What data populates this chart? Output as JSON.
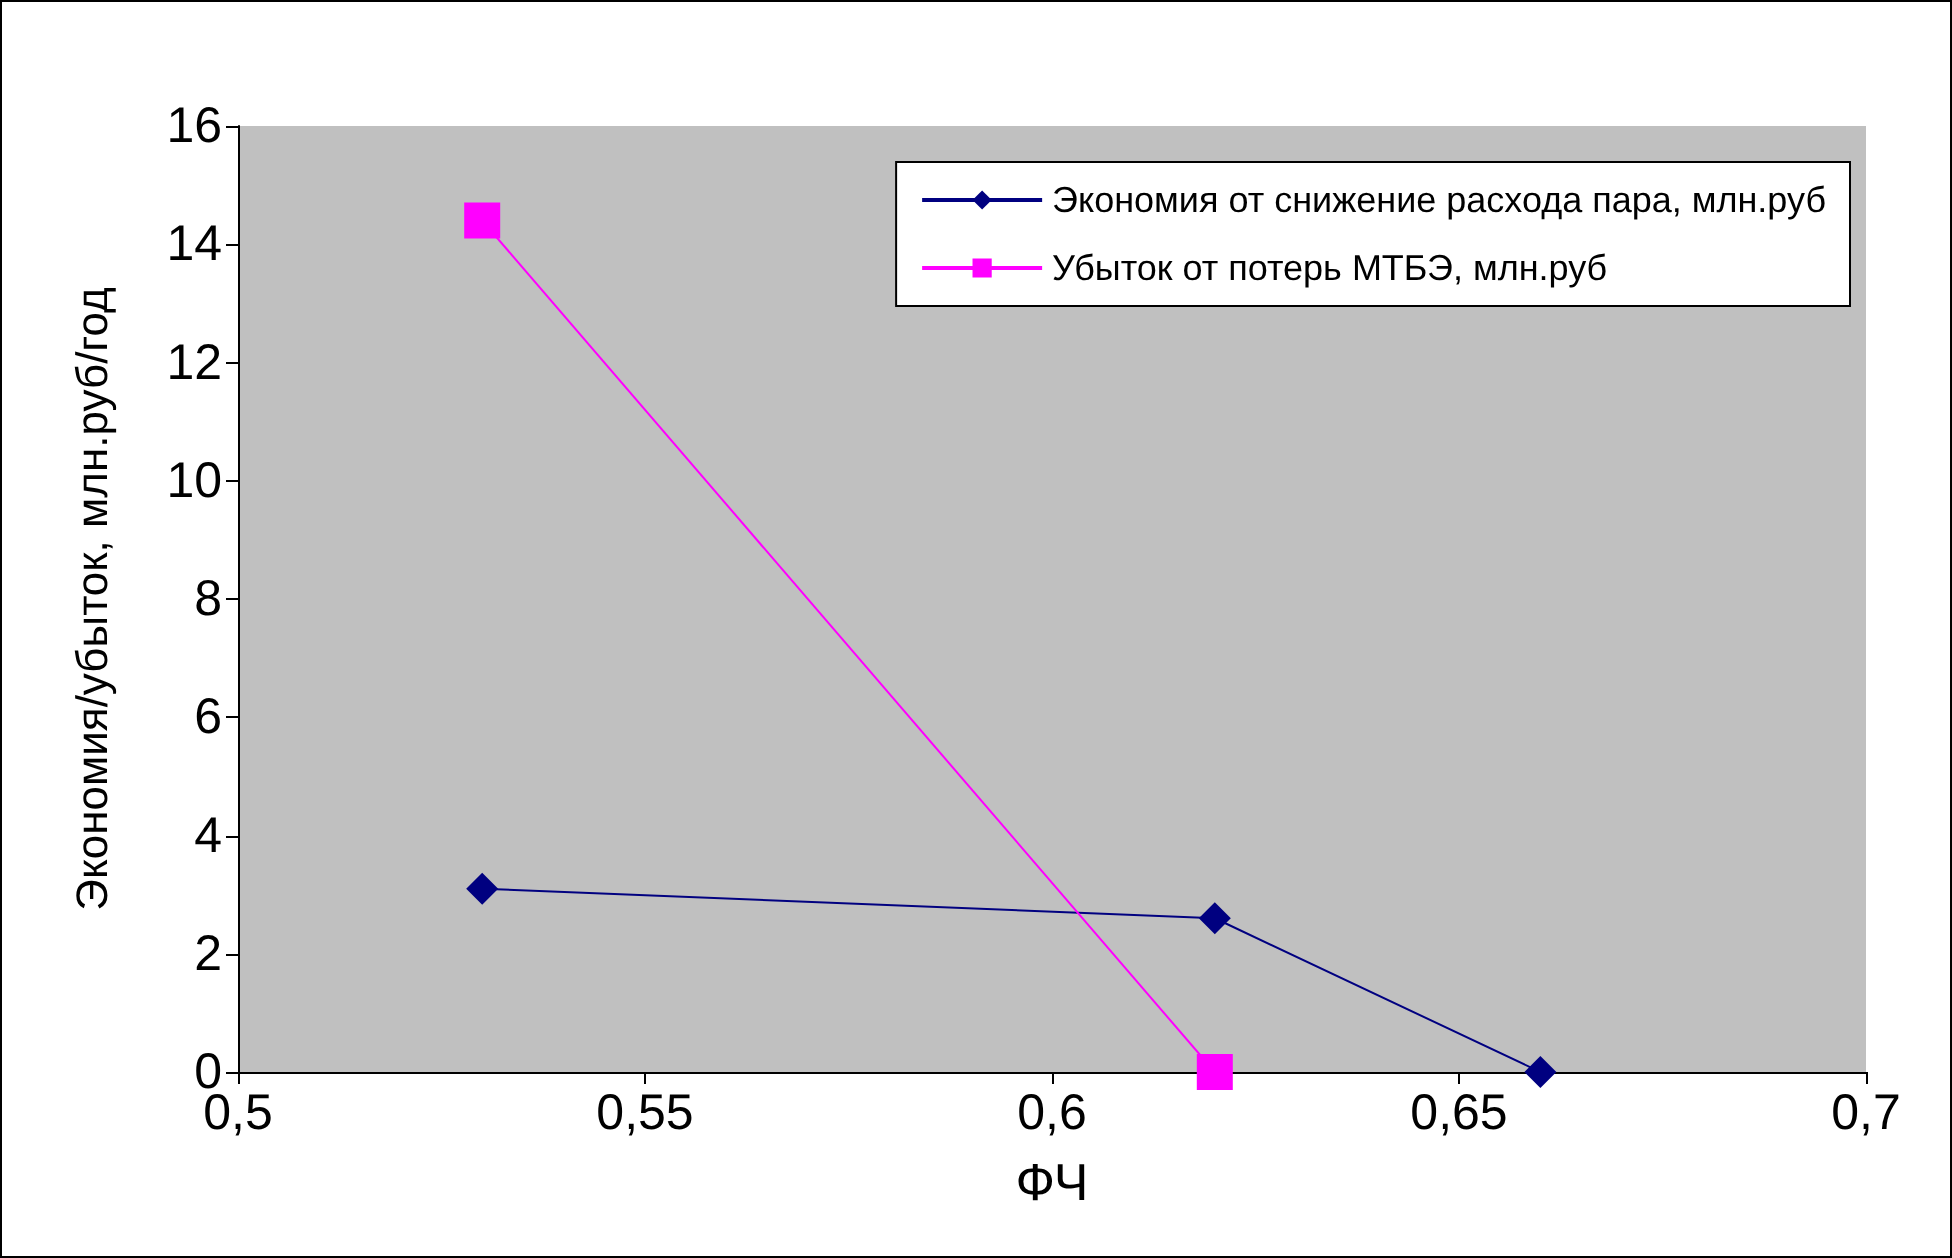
{
  "chart_data": {
    "type": "line",
    "xlabel": "ФЧ",
    "ylabel": "Экономия/убыток, млн.руб/год",
    "series": [
      {
        "name": "Экономия от снижение расхода пара, млн.руб",
        "color": "#000080",
        "marker": "diamond",
        "x": [
          0.53,
          0.62,
          0.66
        ],
        "values": [
          3.1,
          2.6,
          0
        ]
      },
      {
        "name": "Убыток от потерь МТБЭ, млн.руб",
        "color": "#ff00ff",
        "marker": "square",
        "x": [
          0.53,
          0.62
        ],
        "values": [
          14.4,
          0
        ]
      }
    ],
    "xlim": [
      0.5,
      0.7
    ],
    "xticks": [
      {
        "value": 0.5,
        "label": "0,5"
      },
      {
        "value": 0.55,
        "label": "0,55"
      },
      {
        "value": 0.6,
        "label": "0,6"
      },
      {
        "value": 0.65,
        "label": "0,65"
      },
      {
        "value": 0.7,
        "label": "0,7"
      }
    ],
    "ylim": [
      0,
      16
    ],
    "yticks": [
      0,
      2,
      4,
      6,
      8,
      10,
      12,
      14,
      16
    ],
    "grid": false,
    "legend": "top right"
  }
}
